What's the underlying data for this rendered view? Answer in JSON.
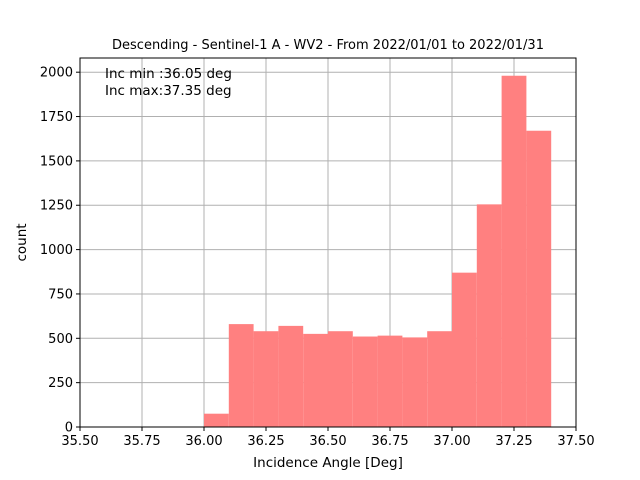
{
  "chart_data": {
    "type": "bar",
    "title": "Descending - Sentinel-1 A - WV2 - From 2022/01/01 to 2022/01/31",
    "xlabel": "Incidence Angle [Deg]",
    "ylabel": "count",
    "xlim": [
      35.5,
      37.5
    ],
    "ylim": [
      0,
      2080
    ],
    "grid": true,
    "bar_color": "#ff8080",
    "grid_color": "#b0b0b0",
    "bin_width": 0.1,
    "bins": [
      {
        "start": 36.0,
        "end": 36.1,
        "count": 75
      },
      {
        "start": 36.1,
        "end": 36.2,
        "count": 580
      },
      {
        "start": 36.2,
        "end": 36.3,
        "count": 540
      },
      {
        "start": 36.3,
        "end": 36.4,
        "count": 570
      },
      {
        "start": 36.4,
        "end": 36.5,
        "count": 525
      },
      {
        "start": 36.5,
        "end": 36.6,
        "count": 540
      },
      {
        "start": 36.6,
        "end": 36.7,
        "count": 510
      },
      {
        "start": 36.7,
        "end": 36.8,
        "count": 515
      },
      {
        "start": 36.8,
        "end": 36.9,
        "count": 505
      },
      {
        "start": 36.9,
        "end": 37.0,
        "count": 540
      },
      {
        "start": 37.0,
        "end": 37.1,
        "count": 870
      },
      {
        "start": 37.1,
        "end": 37.2,
        "count": 1255
      },
      {
        "start": 37.2,
        "end": 37.3,
        "count": 1980
      },
      {
        "start": 37.3,
        "end": 37.4,
        "count": 1670
      }
    ],
    "x_ticks": [
      35.5,
      35.75,
      36.0,
      36.25,
      36.5,
      36.75,
      37.0,
      37.25,
      37.5
    ],
    "x_tick_labels": [
      "35.50",
      "35.75",
      "36.00",
      "36.25",
      "36.50",
      "36.75",
      "37.00",
      "37.25",
      "37.50"
    ],
    "y_ticks": [
      0,
      250,
      500,
      750,
      1000,
      1250,
      1500,
      1750,
      2000
    ],
    "y_tick_labels": [
      "0",
      "250",
      "500",
      "750",
      "1000",
      "1250",
      "1500",
      "1750",
      "2000"
    ],
    "annotations": {
      "inc_min": "Inc min :36.05 deg",
      "inc_max": "Inc max:37.35 deg"
    }
  }
}
